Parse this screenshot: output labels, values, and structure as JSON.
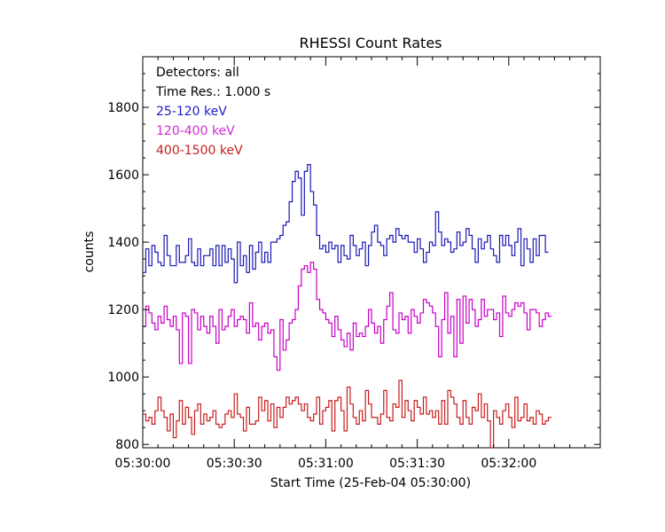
{
  "chart_data": {
    "type": "line",
    "step": true,
    "title": "RHESSI Count Rates",
    "xlabel": "Start Time (25-Feb-04 05:30:00)",
    "ylabel": "counts",
    "xlim": [
      "05:30:00",
      "05:32:30"
    ],
    "ylim": [
      790,
      1950
    ],
    "x_ticks": [
      "05:30:00",
      "05:30:30",
      "05:31:00",
      "05:31:30",
      "05:32:00"
    ],
    "y_ticks": [
      800,
      1000,
      1200,
      1400,
      1600,
      1800
    ],
    "grid": false,
    "legend": {
      "placement": "top-left",
      "lines": [
        "Detectors: all",
        "Time Res.: 1.000 s"
      ]
    },
    "x_start": "05:30:00",
    "x_interval_seconds": 1,
    "series": [
      {
        "name": "25-120 keV",
        "color": "#1a1ab4",
        "values": [
          1310,
          1380,
          1330,
          1390,
          1370,
          1340,
          1330,
          1420,
          1360,
          1330,
          1330,
          1390,
          1340,
          1340,
          1360,
          1410,
          1340,
          1330,
          1380,
          1330,
          1360,
          1360,
          1380,
          1330,
          1390,
          1330,
          1390,
          1340,
          1380,
          1350,
          1280,
          1400,
          1330,
          1360,
          1310,
          1390,
          1320,
          1370,
          1400,
          1340,
          1370,
          1340,
          1400,
          1400,
          1410,
          1420,
          1450,
          1460,
          1520,
          1580,
          1610,
          1590,
          1480,
          1610,
          1630,
          1550,
          1510,
          1420,
          1380,
          1390,
          1370,
          1400,
          1380,
          1390,
          1340,
          1390,
          1360,
          1350,
          1420,
          1390,
          1360,
          1380,
          1400,
          1330,
          1390,
          1430,
          1450,
          1400,
          1390,
          1360,
          1410,
          1420,
          1400,
          1440,
          1420,
          1410,
          1420,
          1400,
          1400,
          1370,
          1410,
          1380,
          1340,
          1370,
          1400,
          1390,
          1490,
          1430,
          1390,
          1410,
          1400,
          1370,
          1380,
          1430,
          1390,
          1400,
          1440,
          1420,
          1380,
          1340,
          1410,
          1380,
          1400,
          1420,
          1380,
          1360,
          1340,
          1420,
          1390,
          1420,
          1390,
          1360,
          1400,
          1440,
          1330,
          1410,
          1380,
          1340,
          1410,
          1360,
          1420,
          1420,
          1370
        ],
        "label_color": "#2020c8"
      },
      {
        "name": "120-400 keV",
        "color": "#c800c8",
        "values": [
          1150,
          1210,
          1190,
          1160,
          1140,
          1180,
          1160,
          1210,
          1170,
          1150,
          1180,
          1140,
          1040,
          1190,
          1180,
          1040,
          1200,
          1190,
          1140,
          1180,
          1150,
          1130,
          1180,
          1150,
          1100,
          1200,
          1140,
          1150,
          1180,
          1200,
          1150,
          1170,
          1180,
          1170,
          1130,
          1220,
          1150,
          1160,
          1110,
          1150,
          1160,
          1130,
          1140,
          1060,
          1020,
          1170,
          1080,
          1110,
          1160,
          1170,
          1200,
          1270,
          1320,
          1330,
          1310,
          1340,
          1320,
          1230,
          1200,
          1190,
          1170,
          1160,
          1120,
          1180,
          1140,
          1110,
          1090,
          1130,
          1080,
          1160,
          1120,
          1130,
          1120,
          1150,
          1200,
          1160,
          1130,
          1150,
          1100,
          1170,
          1210,
          1250,
          1140,
          1130,
          1190,
          1170,
          1180,
          1130,
          1200,
          1180,
          1160,
          1190,
          1230,
          1220,
          1210,
          1190,
          1150,
          1060,
          1170,
          1250,
          1130,
          1180,
          1060,
          1230,
          1100,
          1240,
          1160,
          1230,
          1200,
          1150,
          1170,
          1230,
          1180,
          1200,
          1200,
          1170,
          1190,
          1120,
          1240,
          1190,
          1180,
          1200,
          1220,
          1210,
          1220,
          1190,
          1140,
          1200,
          1200,
          1190,
          1150,
          1170,
          1190,
          1180
        ],
        "label_color": "#d22ad2"
      },
      {
        "name": "400-1500 keV",
        "color": "#c81e1e",
        "values": [
          890,
          870,
          880,
          860,
          900,
          940,
          900,
          880,
          840,
          890,
          820,
          870,
          930,
          860,
          910,
          880,
          830,
          900,
          920,
          860,
          890,
          870,
          880,
          900,
          860,
          850,
          860,
          890,
          900,
          880,
          950,
          890,
          880,
          840,
          910,
          860,
          860,
          870,
          940,
          900,
          930,
          870,
          920,
          850,
          910,
          880,
          910,
          940,
          920,
          930,
          940,
          920,
          900,
          920,
          880,
          870,
          890,
          940,
          860,
          900,
          910,
          930,
          840,
          930,
          940,
          900,
          840,
          970,
          920,
          880,
          860,
          900,
          870,
          960,
          920,
          880,
          880,
          860,
          890,
          960,
          880,
          870,
          920,
          910,
          990,
          880,
          930,
          900,
          870,
          930,
          910,
          890,
          940,
          890,
          900,
          880,
          900,
          860,
          930,
          860,
          960,
          940,
          920,
          880,
          860,
          930,
          880,
          860,
          910,
          900,
          950,
          880,
          920,
          870,
          780,
          900,
          880,
          860,
          900,
          920,
          880,
          850,
          940,
          870,
          880,
          920,
          870,
          880,
          860,
          900,
          890,
          860,
          870,
          880
        ]
      }
    ]
  }
}
